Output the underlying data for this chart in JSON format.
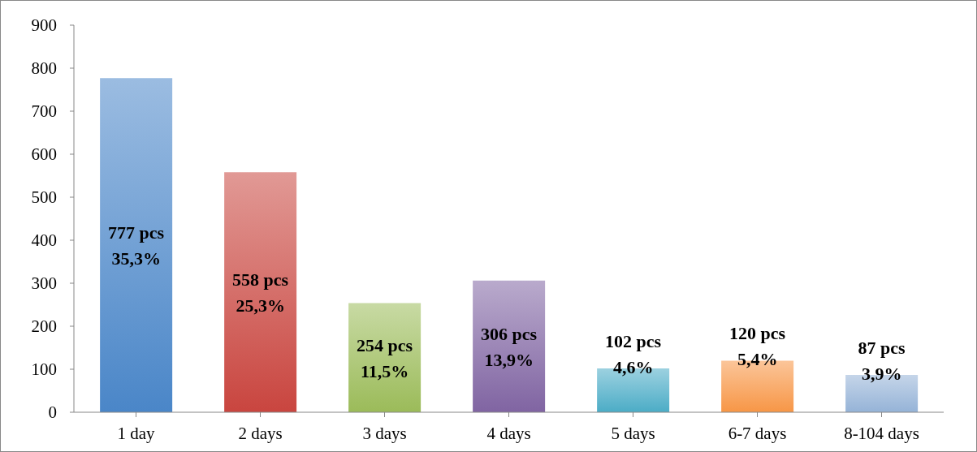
{
  "chart_data": {
    "type": "bar",
    "categories": [
      "1 day",
      "2 days",
      "3 days",
      "4 days",
      "5 days",
      "6-7 days",
      "8-104 days"
    ],
    "values": [
      777,
      558,
      254,
      306,
      102,
      120,
      87
    ],
    "colors": [
      "#4a86c8",
      "#c9453f",
      "#9bbb59",
      "#8064a2",
      "#4bacc6",
      "#f79646",
      "#95b3d7"
    ],
    "value_labels": [
      "777 pcs\n35,3%",
      "558 pcs\n25,3%",
      "254 pcs\n11,5%",
      "306 pcs\n13,9%",
      "102 pcs\n4,6%",
      "120 pcs\n5,4%",
      "87 pcs\n3,9%"
    ],
    "ylim": [
      0,
      900
    ],
    "yticks": [
      0,
      100,
      200,
      300,
      400,
      500,
      600,
      700,
      800,
      900
    ],
    "grid": false,
    "legend": false
  }
}
